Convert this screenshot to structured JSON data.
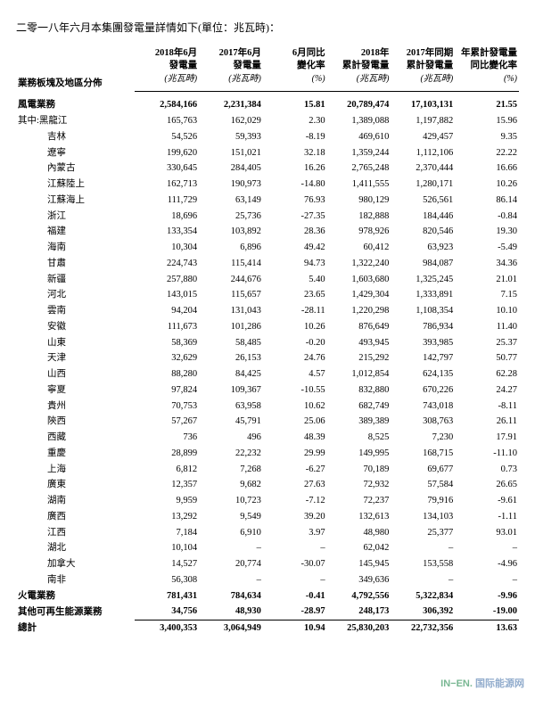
{
  "title": "二零一八年六月本集團發電量詳情如下(單位：兆瓦時)：",
  "columns": {
    "label": "業務板塊及地區分佈",
    "c1": "2018年6月\n發電量",
    "c2": "2017年6月\n發電量",
    "c3": "6月同比\n變化率",
    "c4": "2018年\n累計發電量",
    "c5": "2017年同期\n累計發電量",
    "c6": "年累計發電量\n同比變化率"
  },
  "units": {
    "c1": "(兆瓦時)",
    "c2": "(兆瓦時)",
    "c3": "(%)",
    "c4": "(兆瓦時)",
    "c5": "(兆瓦時)",
    "c6": "(%)"
  },
  "rows": [
    {
      "label": "風電業務",
      "c1": "2,584,166",
      "c2": "2,231,384",
      "c3": "15.81",
      "c4": "20,789,474",
      "c5": "17,103,131",
      "c6": "21.55",
      "bold": true
    },
    {
      "label": "其中:黑龍江",
      "c1": "165,763",
      "c2": "162,029",
      "c3": "2.30",
      "c4": "1,389,088",
      "c5": "1,197,882",
      "c6": "15.96",
      "indent": false
    },
    {
      "label": "吉林",
      "c1": "54,526",
      "c2": "59,393",
      "c3": "-8.19",
      "c4": "469,610",
      "c5": "429,457",
      "c6": "9.35",
      "indent": true
    },
    {
      "label": "遼寧",
      "c1": "199,620",
      "c2": "151,021",
      "c3": "32.18",
      "c4": "1,359,244",
      "c5": "1,112,106",
      "c6": "22.22",
      "indent": true
    },
    {
      "label": "內蒙古",
      "c1": "330,645",
      "c2": "284,405",
      "c3": "16.26",
      "c4": "2,765,248",
      "c5": "2,370,444",
      "c6": "16.66",
      "indent": true
    },
    {
      "label": "江蘇陸上",
      "c1": "162,713",
      "c2": "190,973",
      "c3": "-14.80",
      "c4": "1,411,555",
      "c5": "1,280,171",
      "c6": "10.26",
      "indent": true
    },
    {
      "label": "江蘇海上",
      "c1": "111,729",
      "c2": "63,149",
      "c3": "76.93",
      "c4": "980,129",
      "c5": "526,561",
      "c6": "86.14",
      "indent": true
    },
    {
      "label": "浙江",
      "c1": "18,696",
      "c2": "25,736",
      "c3": "-27.35",
      "c4": "182,888",
      "c5": "184,446",
      "c6": "-0.84",
      "indent": true
    },
    {
      "label": "福建",
      "c1": "133,354",
      "c2": "103,892",
      "c3": "28.36",
      "c4": "978,926",
      "c5": "820,546",
      "c6": "19.30",
      "indent": true
    },
    {
      "label": "海南",
      "c1": "10,304",
      "c2": "6,896",
      "c3": "49.42",
      "c4": "60,412",
      "c5": "63,923",
      "c6": "-5.49",
      "indent": true
    },
    {
      "label": "甘肅",
      "c1": "224,743",
      "c2": "115,414",
      "c3": "94.73",
      "c4": "1,322,240",
      "c5": "984,087",
      "c6": "34.36",
      "indent": true
    },
    {
      "label": "新疆",
      "c1": "257,880",
      "c2": "244,676",
      "c3": "5.40",
      "c4": "1,603,680",
      "c5": "1,325,245",
      "c6": "21.01",
      "indent": true
    },
    {
      "label": "河北",
      "c1": "143,015",
      "c2": "115,657",
      "c3": "23.65",
      "c4": "1,429,304",
      "c5": "1,333,891",
      "c6": "7.15",
      "indent": true
    },
    {
      "label": "雲南",
      "c1": "94,204",
      "c2": "131,043",
      "c3": "-28.11",
      "c4": "1,220,298",
      "c5": "1,108,354",
      "c6": "10.10",
      "indent": true
    },
    {
      "label": "安徽",
      "c1": "111,673",
      "c2": "101,286",
      "c3": "10.26",
      "c4": "876,649",
      "c5": "786,934",
      "c6": "11.40",
      "indent": true
    },
    {
      "label": "山東",
      "c1": "58,369",
      "c2": "58,485",
      "c3": "-0.20",
      "c4": "493,945",
      "c5": "393,985",
      "c6": "25.37",
      "indent": true
    },
    {
      "label": "天津",
      "c1": "32,629",
      "c2": "26,153",
      "c3": "24.76",
      "c4": "215,292",
      "c5": "142,797",
      "c6": "50.77",
      "indent": true
    },
    {
      "label": "山西",
      "c1": "88,280",
      "c2": "84,425",
      "c3": "4.57",
      "c4": "1,012,854",
      "c5": "624,135",
      "c6": "62.28",
      "indent": true
    },
    {
      "label": "寧夏",
      "c1": "97,824",
      "c2": "109,367",
      "c3": "-10.55",
      "c4": "832,880",
      "c5": "670,226",
      "c6": "24.27",
      "indent": true
    },
    {
      "label": "貴州",
      "c1": "70,753",
      "c2": "63,958",
      "c3": "10.62",
      "c4": "682,749",
      "c5": "743,018",
      "c6": "-8.11",
      "indent": true
    },
    {
      "label": "陝西",
      "c1": "57,267",
      "c2": "45,791",
      "c3": "25.06",
      "c4": "389,389",
      "c5": "308,763",
      "c6": "26.11",
      "indent": true
    },
    {
      "label": "西藏",
      "c1": "736",
      "c2": "496",
      "c3": "48.39",
      "c4": "8,525",
      "c5": "7,230",
      "c6": "17.91",
      "indent": true
    },
    {
      "label": "重慶",
      "c1": "28,899",
      "c2": "22,232",
      "c3": "29.99",
      "c4": "149,995",
      "c5": "168,715",
      "c6": "-11.10",
      "indent": true
    },
    {
      "label": "上海",
      "c1": "6,812",
      "c2": "7,268",
      "c3": "-6.27",
      "c4": "70,189",
      "c5": "69,677",
      "c6": "0.73",
      "indent": true
    },
    {
      "label": "廣東",
      "c1": "12,357",
      "c2": "9,682",
      "c3": "27.63",
      "c4": "72,932",
      "c5": "57,584",
      "c6": "26.65",
      "indent": true
    },
    {
      "label": "湖南",
      "c1": "9,959",
      "c2": "10,723",
      "c3": "-7.12",
      "c4": "72,237",
      "c5": "79,916",
      "c6": "-9.61",
      "indent": true
    },
    {
      "label": "廣西",
      "c1": "13,292",
      "c2": "9,549",
      "c3": "39.20",
      "c4": "132,613",
      "c5": "134,103",
      "c6": "-1.11",
      "indent": true
    },
    {
      "label": "江西",
      "c1": "7,184",
      "c2": "6,910",
      "c3": "3.97",
      "c4": "48,980",
      "c5": "25,377",
      "c6": "93.01",
      "indent": true
    },
    {
      "label": "湖北",
      "c1": "10,104",
      "c2": "–",
      "c3": "–",
      "c4": "62,042",
      "c5": "–",
      "c6": "–",
      "indent": true
    },
    {
      "label": "加拿大",
      "c1": "14,527",
      "c2": "20,774",
      "c3": "-30.07",
      "c4": "145,945",
      "c5": "153,558",
      "c6": "-4.96",
      "indent": true
    },
    {
      "label": "南非",
      "c1": "56,308",
      "c2": "–",
      "c3": "–",
      "c4": "349,636",
      "c5": "–",
      "c6": "–",
      "indent": true
    },
    {
      "label": "火電業務",
      "c1": "781,431",
      "c2": "784,634",
      "c3": "-0.41",
      "c4": "4,792,556",
      "c5": "5,322,834",
      "c6": "-9.96",
      "bold": true
    },
    {
      "label": "其他可再生能源業務",
      "c1": "34,756",
      "c2": "48,930",
      "c3": "-28.97",
      "c4": "248,173",
      "c5": "306,392",
      "c6": "-19.00",
      "bold": true,
      "underline": true
    },
    {
      "label": "總計",
      "c1": "3,400,353",
      "c2": "3,064,949",
      "c3": "10.94",
      "c4": "25,830,203",
      "c5": "22,732,356",
      "c6": "13.63",
      "bold": true
    }
  ],
  "watermark": {
    "inen": "IN−EN.",
    "cn": "国际能源网"
  }
}
